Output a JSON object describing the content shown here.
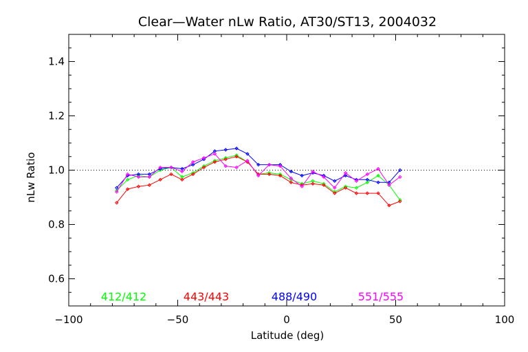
{
  "chart_data": {
    "type": "line",
    "title": "Clear—Water nLw Ratio, AT30/ST13, 2004032",
    "xlabel": "Latitude (deg)",
    "ylabel": "nLw Ratio",
    "xlim": [
      -100,
      100
    ],
    "ylim": [
      0.5,
      1.5
    ],
    "xticks": [
      -100,
      -50,
      0,
      50,
      100
    ],
    "xtick_labels": [
      "−100",
      "−50",
      "0",
      "50",
      "100"
    ],
    "yticks": [
      0.6,
      0.8,
      1.0,
      1.2,
      1.4
    ],
    "ytick_labels": [
      "0.6",
      "0.8",
      "1.0",
      "1.2",
      "1.4"
    ],
    "reference_line": 1.0,
    "grid": false,
    "legend_position": "bottom",
    "x": [
      -78,
      -73,
      -68,
      -63,
      -58,
      -53,
      -48,
      -43,
      -38,
      -33,
      -28,
      -23,
      -18,
      -13,
      -8,
      -3,
      2,
      7,
      12,
      17,
      22,
      27,
      32,
      37,
      42,
      47,
      52
    ],
    "series": [
      {
        "name": "412/412",
        "color": "#00ff00",
        "values": [
          0.925,
          0.965,
          0.98,
          0.975,
          1.0,
          1.01,
          0.975,
          0.99,
          1.015,
          1.035,
          1.045,
          1.055,
          1.03,
          0.985,
          0.99,
          0.985,
          0.965,
          0.95,
          0.96,
          0.95,
          0.92,
          0.94,
          0.935,
          0.955,
          0.98,
          0.945,
          0.89
        ]
      },
      {
        "name": "443/443",
        "color": "#ff0000",
        "values": [
          0.88,
          0.93,
          0.94,
          0.945,
          0.965,
          0.985,
          0.965,
          0.985,
          1.01,
          1.03,
          1.04,
          1.05,
          1.03,
          0.985,
          0.985,
          0.98,
          0.955,
          0.945,
          0.95,
          0.945,
          0.915,
          0.935,
          0.915,
          0.915,
          0.915,
          0.87,
          0.885
        ]
      },
      {
        "name": "488/490",
        "color": "#0000ff",
        "values": [
          0.935,
          0.98,
          0.985,
          0.985,
          1.005,
          1.01,
          1.005,
          1.02,
          1.04,
          1.07,
          1.075,
          1.08,
          1.06,
          1.02,
          1.02,
          1.02,
          0.995,
          0.98,
          0.99,
          0.98,
          0.96,
          0.98,
          0.965,
          0.965,
          0.955,
          0.955,
          1.0
        ]
      },
      {
        "name": "551/555",
        "color": "#ff00ff",
        "values": [
          0.92,
          0.985,
          0.975,
          0.975,
          1.01,
          1.01,
          0.995,
          1.03,
          1.045,
          1.06,
          1.015,
          1.01,
          1.035,
          0.98,
          1.02,
          1.015,
          0.97,
          0.94,
          0.995,
          0.975,
          0.935,
          0.99,
          0.96,
          0.985,
          1.005,
          0.945,
          0.975
        ]
      }
    ]
  }
}
